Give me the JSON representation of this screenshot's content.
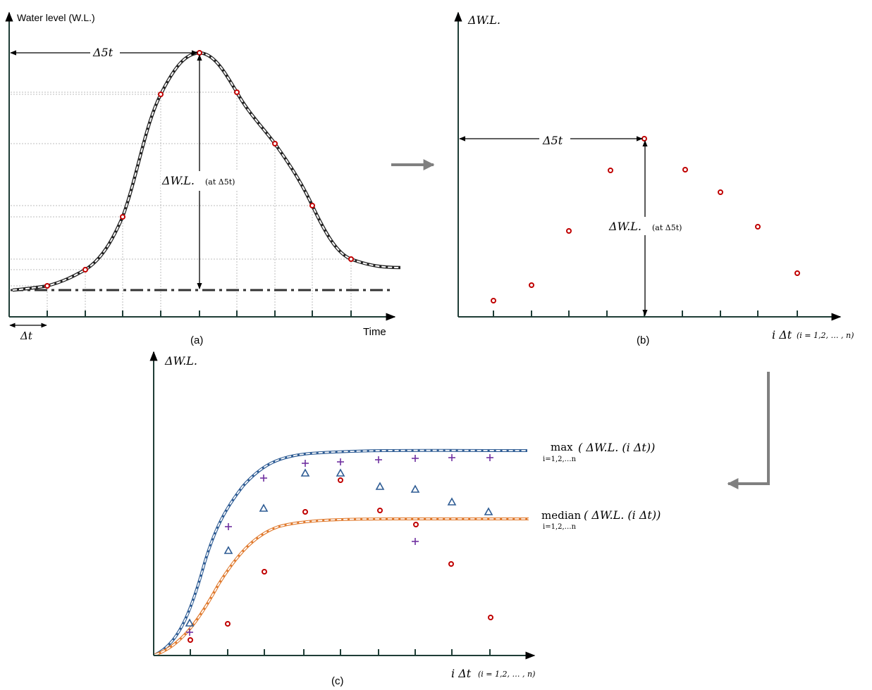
{
  "panel_a": {
    "caption": "(a)",
    "y_label": "Water level (W.L.)",
    "x_label": "Time",
    "dt_label": "Δt",
    "d5t_label": "Δ5t",
    "dwl_label": "ΔW.L.",
    "dwl_sub": "(at Δ5t)"
  },
  "panel_b": {
    "caption": "(b)",
    "y_label": "ΔW.L.",
    "x_label": "i Δt",
    "x_sub": "(i = 1,2, … , n)",
    "d5t_label": "Δ5t",
    "dwl_label": "ΔW.L.",
    "dwl_sub": "(at Δ5t)"
  },
  "panel_c": {
    "caption": "(c)",
    "y_label": "ΔW.L.",
    "x_label": "i Δt",
    "x_sub": "(i = 1,2, … , n)",
    "max_op": "max",
    "max_arg": "( ΔW.L. (i Δt))",
    "max_sub": "i=1,2,…n",
    "median_op": "median",
    "median_arg": "( ΔW.L. (i Δt))",
    "median_sub": "i=1,2,…n"
  },
  "colors": {
    "axis": "#1f3d36",
    "marker_red": "#c00000",
    "marker_blue": "#2e5c94",
    "marker_purple": "#7030a0",
    "max_curve": "#2e5c94",
    "median_curve": "#e07a2e",
    "arrow_gray": "#808080"
  },
  "icons": {
    "flow_arrow_right": "arrow-right-icon",
    "flow_arrow_down_left": "arrow-down-left-icon"
  }
}
